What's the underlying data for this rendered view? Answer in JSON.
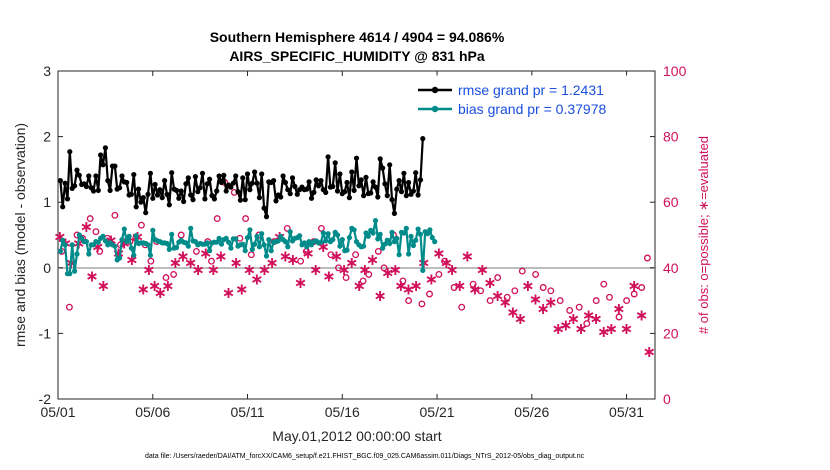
{
  "chart_data": {
    "type": "line",
    "title": "Southern Hemisphere 4614 / 4904 = 94.086%",
    "subtitle": "AIRS_SPECIFIC_HUMIDITY @ 831 hPa",
    "xlabel": "May.01,2012 00:00:00 start",
    "ylabel": "rmse and bias (model - observation)",
    "ylabel_right": "# of obs: o=possible; ∗=evaluated",
    "footnote": "data file: /Users/raeder/DAI/ATM_forcXX/CAM6_setup/f.e21.FHIST_BGC.f09_025.CAM6assim.011/Diags_NTrS_2012-05/obs_diag_output.nc",
    "xlim": [
      0,
      31.5
    ],
    "ylim": [
      -2,
      3
    ],
    "ylim_right": [
      0,
      100
    ],
    "x_ticks": [
      0,
      5,
      10,
      15,
      20,
      25,
      30
    ],
    "x_tick_labels": [
      "05/01",
      "05/06",
      "05/11",
      "05/16",
      "05/21",
      "05/26",
      "05/31"
    ],
    "y_ticks": [
      "-2",
      "-1",
      "0",
      "1",
      "2",
      "3"
    ],
    "y_ticks_right": [
      "0",
      "20",
      "40",
      "60",
      "80",
      "100"
    ],
    "x_step_days": 0.125,
    "series": [
      {
        "name": "rmse grand pr = 1.2431",
        "axis": "left",
        "color": "#000000",
        "values": [
          1.33,
          0.93,
          1.29,
          1.05,
          1.77,
          1.21,
          1.25,
          1.49,
          1.41,
          1.27,
          1.28,
          1.24,
          1.4,
          1.22,
          1.17,
          1.4,
          1.18,
          1.72,
          1.57,
          1.83,
          1.33,
          1.18,
          1.55,
          1.55,
          1.2,
          1.22,
          1.4,
          1.31,
          1.3,
          1.11,
          1.12,
          1.42,
          0.93,
          1.2,
          1.0,
          1.07,
          0.84,
          1.12,
          1.44,
          1.06,
          1.27,
          1.11,
          1.19,
          1.07,
          1.33,
          1.12,
          0.96,
          1.45,
          1.2,
          1.18,
          1.06,
          1.17,
          1.01,
          1.28,
          1.37,
          1.11,
          1.04,
          1.39,
          1.16,
          1.22,
          1.44,
          1.05,
          1.28,
          1.35,
          1.1,
          1.05,
          1.17,
          1.4,
          1.3,
          1.41,
          1.17,
          1.26,
          1.23,
          1.29,
          1.4,
          1.16,
          1.03,
          1.37,
          1.04,
          1.43,
          1.19,
          1.29,
          1.46,
          1.29,
          1.07,
          1.43,
          0.91,
          0.78,
          1.31,
          1.3,
          1.33,
          1.02,
          1.11,
          1.08,
          1.4,
          1.3,
          1.19,
          1.13,
          1.37,
          1.24,
          1.12,
          1.19,
          1.23,
          1.19,
          1.2,
          1.31,
          1.06,
          1.15,
          1.34,
          1.25,
          1.33,
          1.19,
          1.15,
          1.69,
          1.23,
          1.24,
          1.6,
          1.17,
          1.43,
          1.13,
          1.16,
          1.3,
          1.07,
          1.46,
          1.18,
          1.67,
          1.25,
          1.34,
          1.1,
          1.38,
          1.13,
          1.14,
          1.31,
          1.23,
          1.08,
          1.66,
          1.52,
          1.28,
          1.1,
          1.57,
          1.04,
          0.83,
          1.2,
          1.33,
          1.16,
          1.44,
          1.1,
          1.3,
          1.12,
          1.17,
          1.45,
          1.11,
          1.34,
          1.97
        ]
      },
      {
        "name": "bias grand pr = 0.37978",
        "axis": "left",
        "color": "#008b8b",
        "values": [
          0.25,
          0.42,
          0.35,
          -0.09,
          -0.09,
          0.35,
          -0.05,
          0.21,
          0.5,
          0.45,
          0.4,
          0.4,
          0.21,
          0.35,
          0.35,
          0.4,
          0.39,
          0.45,
          0.48,
          0.41,
          0.35,
          0.38,
          0.35,
          0.33,
          0.12,
          0.15,
          0.43,
          0.59,
          0.4,
          0.48,
          0.3,
          0.19,
          0.49,
          0.37,
          0.38,
          0.38,
          0.37,
          0.35,
          0.19,
          0.57,
          0.43,
          0.41,
          0.4,
          0.38,
          0.38,
          0.37,
          0.28,
          0.51,
          0.3,
          0.31,
          0.39,
          0.42,
          0.39,
          0.38,
          0.33,
          0.6,
          0.41,
          0.4,
          0.35,
          0.37,
          0.36,
          0.36,
          0.38,
          0.26,
          0.38,
          0.39,
          0.39,
          0.45,
          0.36,
          0.43,
          0.45,
          0.39,
          0.3,
          0.44,
          0.44,
          0.33,
          0.35,
          0.36,
          0.26,
          0.46,
          0.58,
          0.28,
          0.36,
          0.48,
          0.32,
          0.52,
          0.35,
          0.18,
          0.43,
          0.26,
          0.39,
          0.4,
          0.41,
          0.48,
          0.43,
          0.4,
          0.32,
          0.55,
          0.41,
          0.45,
          0.46,
          0.49,
          0.35,
          0.38,
          0.32,
          0.4,
          0.35,
          0.4,
          0.41,
          0.38,
          0.39,
          0.53,
          0.41,
          0.52,
          0.4,
          0.43,
          0.54,
          0.5,
          0.33,
          0.43,
          0.26,
          0.27,
          0.46,
          0.6,
          0.58,
          0.4,
          0.35,
          0.32,
          0.33,
          0.53,
          0.48,
          0.57,
          0.53,
          0.72,
          0.44,
          0.51,
          0.3,
          0.36,
          0.42,
          0.37,
          0.54,
          0.4,
          0.45,
          0.2,
          0.54,
          0.53,
          0.6,
          0.21,
          0.48,
          0.34,
          0.42,
          0.59,
          0.51,
          -0.04,
          0.55,
          0.52,
          0.58,
          0.46,
          0.4
        ]
      }
    ],
    "scatter_series": [
      {
        "name": "possible",
        "marker": "o",
        "axis": "right",
        "color": "#d0105a",
        "points": [
          [
            0.2,
            45
          ],
          [
            0.6,
            28
          ],
          [
            1.0,
            50
          ],
          [
            1.3,
            49
          ],
          [
            1.7,
            55
          ],
          [
            2.0,
            51
          ],
          [
            2.2,
            45
          ],
          [
            2.6,
            49
          ],
          [
            3.0,
            56
          ],
          [
            3.3,
            47
          ],
          [
            3.8,
            48
          ],
          [
            4.1,
            49
          ],
          [
            4.4,
            53
          ],
          [
            4.6,
            47
          ],
          [
            4.9,
            42
          ],
          [
            5.2,
            48
          ],
          [
            5.7,
            37
          ],
          [
            6.1,
            38
          ],
          [
            6.5,
            50
          ],
          [
            7.3,
            45
          ],
          [
            7.9,
            48
          ],
          [
            8.1,
            42
          ],
          [
            8.4,
            55
          ],
          [
            8.8,
            66
          ],
          [
            9.3,
            63
          ],
          [
            9.6,
            49
          ],
          [
            9.9,
            55
          ],
          [
            10.2,
            44
          ],
          [
            10.6,
            50
          ],
          [
            11.4,
            48
          ],
          [
            12.1,
            52
          ],
          [
            12.8,
            42
          ],
          [
            13.1,
            45
          ],
          [
            13.5,
            48
          ],
          [
            13.9,
            52
          ],
          [
            14.4,
            44
          ],
          [
            14.8,
            40
          ],
          [
            15.2,
            37
          ],
          [
            15.7,
            44
          ],
          [
            16.1,
            36
          ],
          [
            16.4,
            38
          ],
          [
            16.9,
            45
          ],
          [
            17.2,
            40
          ],
          [
            17.7,
            50
          ],
          [
            18.2,
            36
          ],
          [
            18.5,
            30
          ],
          [
            19.2,
            29
          ],
          [
            19.6,
            32
          ],
          [
            20.1,
            38
          ],
          [
            20.4,
            42
          ],
          [
            20.9,
            34
          ],
          [
            21.3,
            28
          ],
          [
            21.9,
            35
          ],
          [
            22.3,
            33
          ],
          [
            22.8,
            30
          ],
          [
            23.2,
            37
          ],
          [
            23.7,
            31
          ],
          [
            24.1,
            33
          ],
          [
            24.5,
            39
          ],
          [
            25.2,
            38
          ],
          [
            25.6,
            34
          ],
          [
            26.0,
            33
          ],
          [
            26.5,
            30
          ],
          [
            27.0,
            27
          ],
          [
            27.5,
            28
          ],
          [
            27.9,
            23
          ],
          [
            28.4,
            30
          ],
          [
            28.8,
            35
          ],
          [
            29.1,
            31
          ],
          [
            29.6,
            25
          ],
          [
            30.0,
            30
          ],
          [
            30.4,
            32
          ],
          [
            30.8,
            34
          ],
          [
            31.1,
            43
          ]
        ]
      },
      {
        "name": "evaluated",
        "marker": "*",
        "axis": "right",
        "color": "#d0105a",
        "points": [
          [
            0.1,
            50
          ],
          [
            0.4,
            48
          ],
          [
            0.7,
            42
          ],
          [
            1.1,
            48
          ],
          [
            1.5,
            53
          ],
          [
            1.8,
            38
          ],
          [
            2.1,
            47
          ],
          [
            2.4,
            35
          ],
          [
            2.8,
            49
          ],
          [
            3.2,
            45
          ],
          [
            3.5,
            48
          ],
          [
            3.9,
            43
          ],
          [
            4.2,
            50
          ],
          [
            4.5,
            34
          ],
          [
            4.8,
            40
          ],
          [
            5.1,
            35
          ],
          [
            5.4,
            33
          ],
          [
            5.8,
            35
          ],
          [
            6.2,
            42
          ],
          [
            6.6,
            44
          ],
          [
            7.0,
            42
          ],
          [
            7.4,
            40
          ],
          [
            7.8,
            45
          ],
          [
            8.2,
            40
          ],
          [
            8.6,
            44
          ],
          [
            9.0,
            33
          ],
          [
            9.4,
            42
          ],
          [
            9.7,
            34
          ],
          [
            10.1,
            40
          ],
          [
            10.5,
            37
          ],
          [
            10.9,
            40
          ],
          [
            11.3,
            42
          ],
          [
            11.7,
            50
          ],
          [
            12.0,
            44
          ],
          [
            12.4,
            43
          ],
          [
            12.8,
            36
          ],
          [
            13.2,
            45
          ],
          [
            13.6,
            40
          ],
          [
            14.0,
            47
          ],
          [
            14.3,
            38
          ],
          [
            14.7,
            44
          ],
          [
            15.1,
            40
          ],
          [
            15.5,
            42
          ],
          [
            15.9,
            35
          ],
          [
            16.2,
            40
          ],
          [
            16.6,
            43
          ],
          [
            17.0,
            32
          ],
          [
            17.4,
            39
          ],
          [
            17.8,
            40
          ],
          [
            18.1,
            35
          ],
          [
            18.5,
            34
          ],
          [
            18.9,
            35
          ],
          [
            19.3,
            42
          ],
          [
            19.7,
            37
          ],
          [
            20.1,
            45
          ],
          [
            20.5,
            42
          ],
          [
            20.8,
            40
          ],
          [
            21.2,
            35
          ],
          [
            21.6,
            44
          ],
          [
            22.0,
            34
          ],
          [
            22.4,
            40
          ],
          [
            22.8,
            36
          ],
          [
            23.2,
            32
          ],
          [
            23.6,
            30
          ],
          [
            24.0,
            27
          ],
          [
            24.4,
            25
          ],
          [
            24.8,
            35
          ],
          [
            25.2,
            31
          ],
          [
            25.6,
            28
          ],
          [
            26.0,
            30
          ],
          [
            26.4,
            22
          ],
          [
            26.8,
            23
          ],
          [
            27.2,
            25
          ],
          [
            27.6,
            22
          ],
          [
            28.0,
            26
          ],
          [
            28.4,
            25
          ],
          [
            28.8,
            21
          ],
          [
            29.2,
            22
          ],
          [
            29.6,
            28
          ],
          [
            30.0,
            22
          ],
          [
            30.4,
            35
          ],
          [
            30.8,
            26
          ],
          [
            31.2,
            15
          ]
        ]
      }
    ]
  }
}
